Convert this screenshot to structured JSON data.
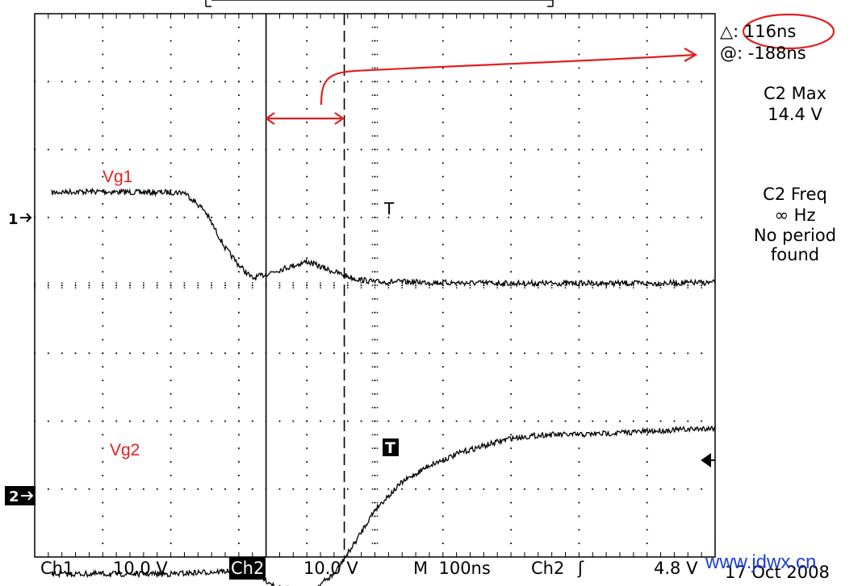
{
  "chart_data": {
    "type": "line",
    "grid": true,
    "x_divisions": 10,
    "y_divisions": 8,
    "series": [
      {
        "name": "Vg1",
        "x": [
          0,
          0.5,
          1,
          1.5,
          2,
          2.2,
          2.5,
          2.8,
          3.0,
          3.2,
          3.5,
          4.0,
          4.4,
          4.7,
          5.0,
          5.5,
          6,
          7,
          8,
          9,
          10
        ],
        "y": [
          1.35,
          1.38,
          1.38,
          1.37,
          1.37,
          1.37,
          1.1,
          0.55,
          0.3,
          0.1,
          0.2,
          0.35,
          0.2,
          0.1,
          0.05,
          0.05,
          0.04,
          0.03,
          0.03,
          0.03,
          0.04
        ]
      },
      {
        "name": "Vg2",
        "x": [
          0,
          1,
          2,
          3,
          3.3,
          3.6,
          4.0,
          4.4,
          4.7,
          5.0,
          5.4,
          5.8,
          6.3,
          7,
          7.5,
          8,
          9,
          10
        ],
        "y": [
          -4.25,
          -4.25,
          -4.25,
          -4.2,
          -4.3,
          -4.45,
          -4.55,
          -4.25,
          -3.8,
          -3.3,
          -2.9,
          -2.65,
          -2.45,
          -2.25,
          -2.2,
          -2.2,
          -2.15,
          -2.1
        ]
      }
    ],
    "cursors": [
      3.4,
      4.55
    ],
    "trigger_x": 5.0,
    "ch1_ref": 1,
    "ch2_ref": -4.25,
    "trigger_level": -3.75,
    "markers": {
      "ch1": "1",
      "ch2": "2",
      "trigger": "T"
    }
  },
  "readouts": {
    "delta": "116ns",
    "at": "-188ns",
    "c2max_label": "C2 Max",
    "c2max_value": "14.4 V",
    "c2freq_label": "C2 Freq",
    "c2freq_value": "∞ Hz",
    "c2freq_note_1": "No period",
    "c2freq_note_2": "found"
  },
  "bottom_bar": {
    "ch1": "Ch1",
    "ch1_scale": "10.0 V",
    "ch2": "Ch2",
    "ch2_scale": "10.0 V",
    "timebase": "M  100ns",
    "trig_source": "Ch2",
    "trig_level": "4.8 V",
    "date": "17 Oct 2008"
  },
  "annotations": {
    "vg1": "Vg1",
    "vg2": "Vg2"
  },
  "watermark": "www.jdwx.cn",
  "colors": {
    "trace": "#000000",
    "annotation": "#e02020",
    "watermark": "#2040d0"
  }
}
